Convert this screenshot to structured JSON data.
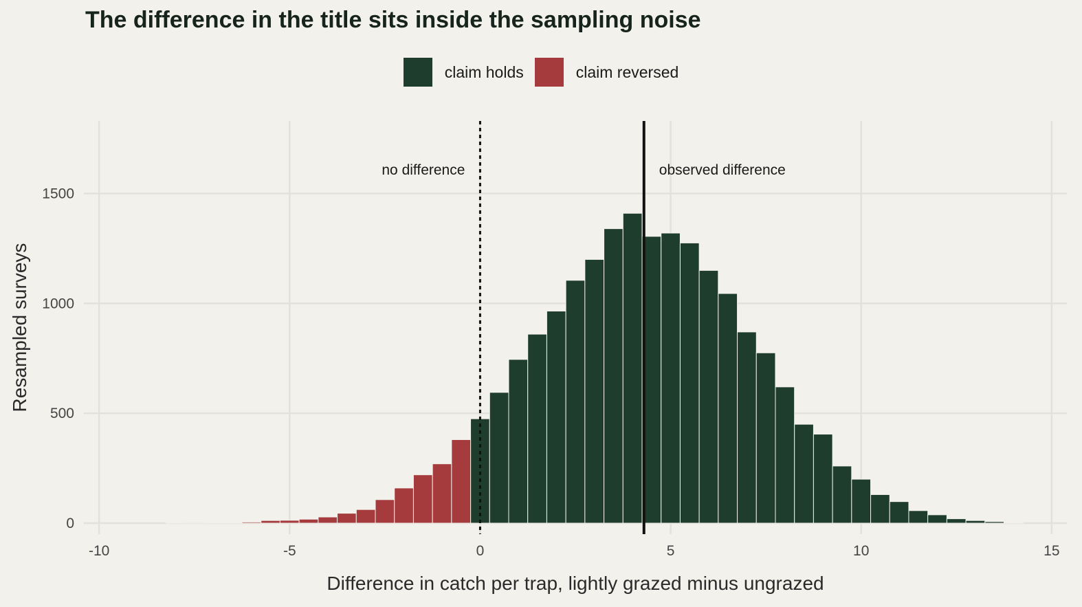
{
  "chart_data": {
    "type": "bar",
    "title": "The difference in the title sits inside the sampling noise",
    "xlabel": "Difference in catch per trap, lightly grazed minus ungrazed",
    "ylabel": "Resampled surveys",
    "xlim": [
      -10.4,
      15.4
    ],
    "ylim": [
      -50,
      1830
    ],
    "x_ticks": [
      -10,
      -5,
      0,
      5,
      10,
      15
    ],
    "y_ticks": [
      0,
      500,
      1000,
      1500
    ],
    "x_tick_labels": [
      "-10",
      "-5",
      "0",
      "5",
      "10",
      "15"
    ],
    "y_tick_labels": [
      "0",
      "500",
      "1000",
      "1500"
    ],
    "grid": true,
    "legend_position": "top",
    "bin_width": 0.5,
    "series": [
      {
        "name": "claim holds",
        "color": "#1f3d2c",
        "bin_centers": [
          0.0,
          0.5,
          1.0,
          1.5,
          2.0,
          2.5,
          3.0,
          3.5,
          4.0,
          4.5,
          5.0,
          5.5,
          6.0,
          6.5,
          7.0,
          7.5,
          8.0,
          8.5,
          9.0,
          9.5,
          10.0,
          10.5,
          11.0,
          11.5,
          12.0,
          12.5,
          13.0,
          13.5,
          14.0
        ],
        "values": [
          475,
          595,
          745,
          860,
          965,
          1105,
          1200,
          1340,
          1410,
          1305,
          1320,
          1275,
          1150,
          1045,
          870,
          775,
          620,
          450,
          405,
          260,
          200,
          130,
          98,
          57,
          38,
          20,
          12,
          7,
          3
        ]
      },
      {
        "name": "claim reversed",
        "color": "#a53b3c",
        "bin_centers": [
          -8.0,
          -7.5,
          -7.0,
          -6.5,
          -6.0,
          -5.5,
          -5.0,
          -4.5,
          -4.0,
          -3.5,
          -3.0,
          -2.5,
          -2.0,
          -1.5,
          -1.0,
          -0.5
        ],
        "values": [
          3,
          1,
          3,
          3,
          5,
          12,
          13,
          18,
          28,
          45,
          62,
          107,
          160,
          220,
          270,
          380
        ]
      }
    ],
    "reference_lines": [
      {
        "x": 0,
        "style": "dotted",
        "label": "no difference",
        "label_side": "left"
      },
      {
        "x": 4.3,
        "style": "solid",
        "label": "observed difference",
        "label_side": "right"
      }
    ]
  }
}
